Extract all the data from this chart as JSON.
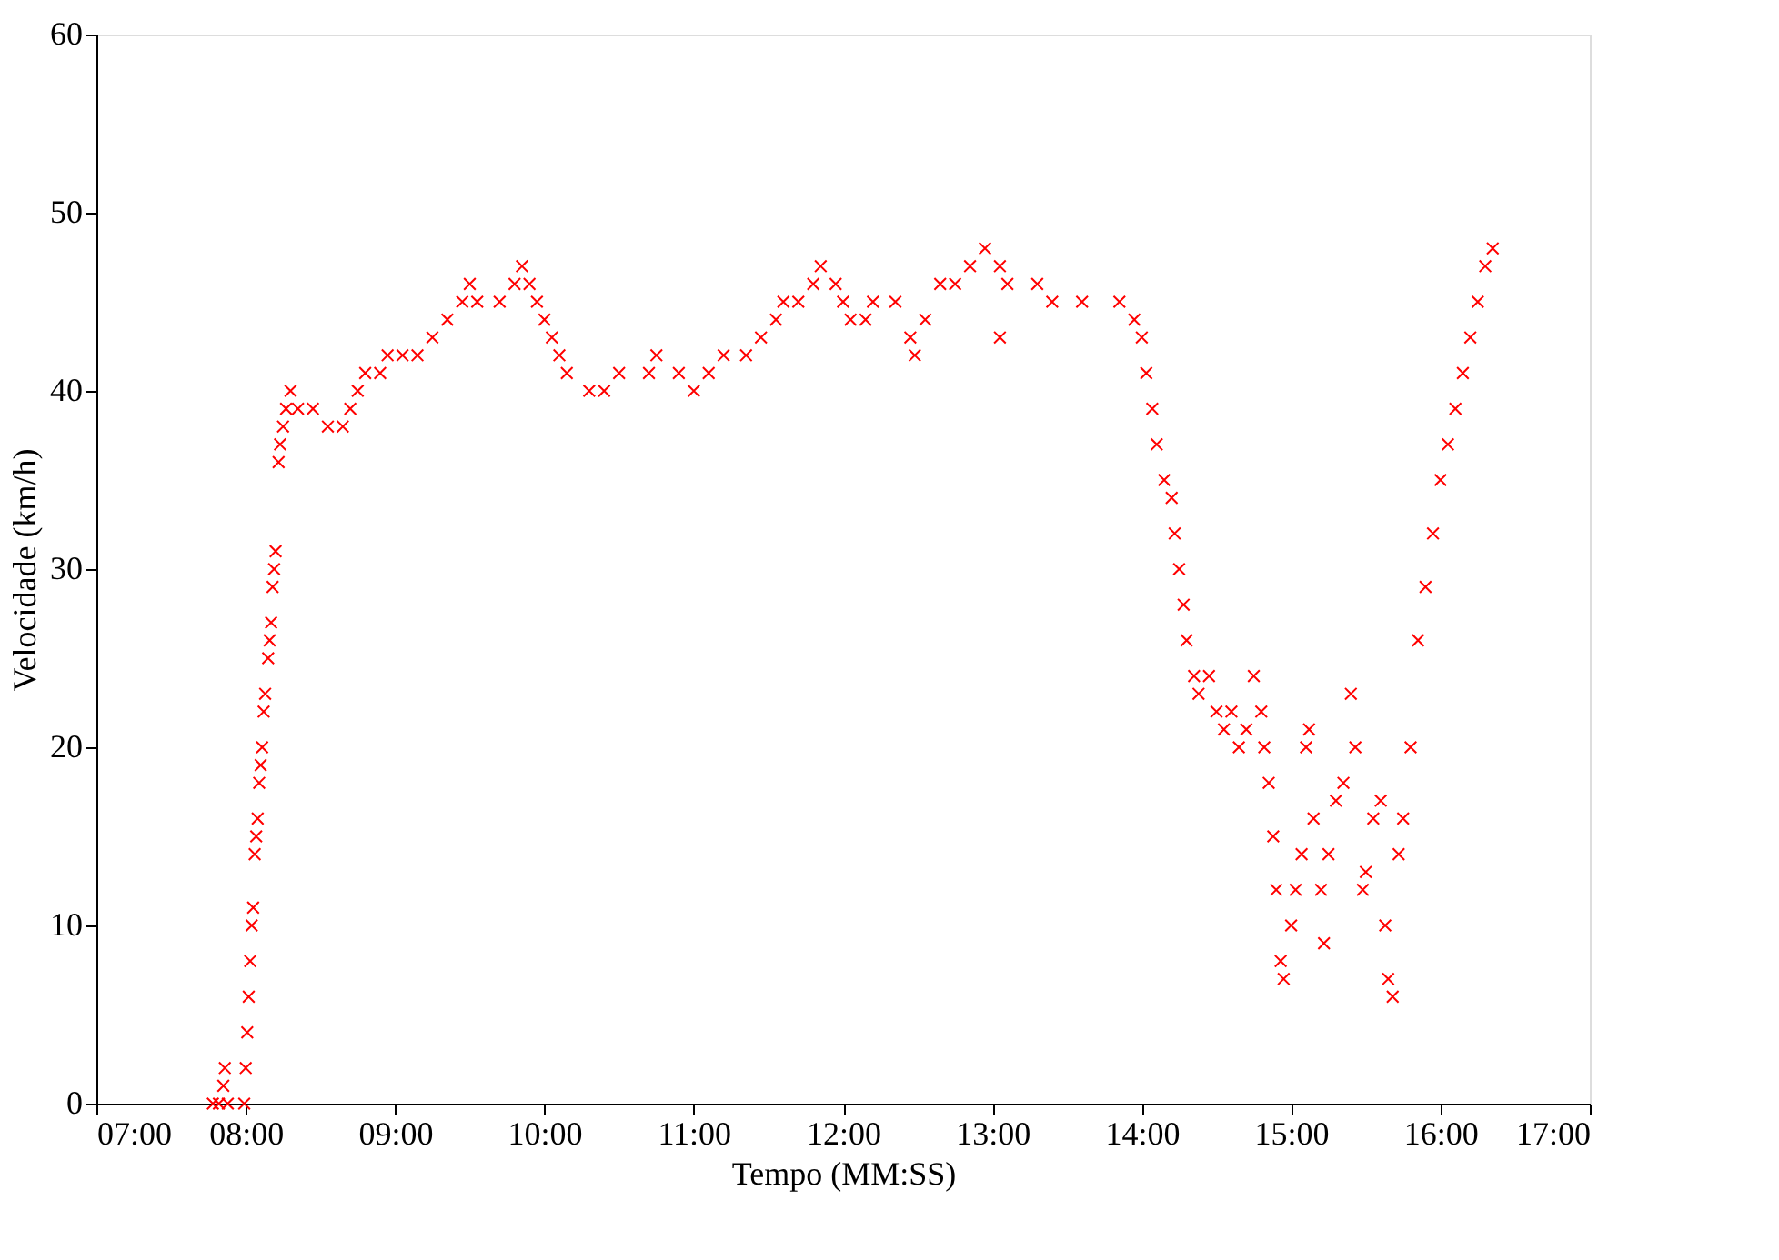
{
  "chart_data": {
    "type": "scatter",
    "xlabel": "Tempo (MM:SS)",
    "ylabel": "Velocidade (km/h)",
    "marker": "cross",
    "grid": false,
    "legend": false,
    "xlim": [
      7,
      17
    ],
    "ylim": [
      0,
      60
    ],
    "xticks": [
      {
        "value": 7,
        "label": "07:00"
      },
      {
        "value": 8,
        "label": "08:00"
      },
      {
        "value": 9,
        "label": "09:00"
      },
      {
        "value": 10,
        "label": "10:00"
      },
      {
        "value": 11,
        "label": "11:00"
      },
      {
        "value": 12,
        "label": "12:00"
      },
      {
        "value": 13,
        "label": "13:00"
      },
      {
        "value": 14,
        "label": "14:00"
      },
      {
        "value": 15,
        "label": "15:00"
      },
      {
        "value": 16,
        "label": "16:00"
      },
      {
        "value": 17,
        "label": "17:00"
      }
    ],
    "yticks": [
      0,
      10,
      20,
      30,
      40,
      50,
      60
    ],
    "series": [
      {
        "color": "#ff0000",
        "x": [
          7.78,
          7.82,
          7.85,
          7.86,
          7.88,
          7.99,
          8.0,
          8.01,
          8.02,
          8.03,
          8.04,
          8.05,
          8.06,
          8.07,
          8.08,
          8.09,
          8.1,
          8.11,
          8.12,
          8.13,
          8.15,
          8.16,
          8.17,
          8.18,
          8.19,
          8.2,
          8.22,
          8.23,
          8.25,
          8.27,
          8.3,
          8.35,
          8.45,
          8.55,
          8.65,
          8.7,
          8.75,
          8.8,
          8.9,
          8.95,
          9.05,
          9.15,
          9.25,
          9.35,
          9.45,
          9.5,
          9.55,
          9.7,
          9.8,
          9.85,
          9.9,
          9.95,
          10.0,
          10.05,
          10.1,
          10.15,
          10.3,
          10.4,
          10.5,
          10.7,
          10.75,
          10.9,
          11.0,
          11.1,
          11.2,
          11.35,
          11.45,
          11.55,
          11.6,
          11.7,
          11.8,
          11.85,
          11.95,
          12.0,
          12.05,
          12.15,
          12.2,
          12.35,
          12.45,
          12.48,
          12.55,
          12.65,
          12.75,
          12.85,
          12.95,
          13.05,
          13.05,
          13.1,
          13.3,
          13.4,
          13.6,
          13.85,
          13.95,
          14.0,
          14.03,
          14.07,
          14.1,
          14.15,
          14.2,
          14.22,
          14.25,
          14.28,
          14.3,
          14.35,
          14.38,
          14.45,
          14.5,
          14.55,
          14.6,
          14.65,
          14.7,
          14.75,
          14.8,
          14.82,
          14.85,
          14.88,
          14.9,
          14.93,
          14.95,
          15.0,
          15.03,
          15.07,
          15.1,
          15.12,
          15.15,
          15.2,
          15.22,
          15.25,
          15.3,
          15.35,
          15.4,
          15.43,
          15.48,
          15.5,
          15.55,
          15.6,
          15.63,
          15.65,
          15.68,
          15.72,
          15.75,
          15.8,
          15.85,
          15.9,
          15.95,
          16.0,
          16.05,
          16.1,
          16.15,
          16.2,
          16.25,
          16.3,
          16.35
        ],
        "values": [
          0,
          0,
          1,
          2,
          0,
          0,
          2,
          4,
          6,
          8,
          10,
          11,
          14,
          15,
          16,
          18,
          19,
          20,
          22,
          23,
          25,
          26,
          27,
          29,
          30,
          31,
          36,
          37,
          38,
          39,
          40,
          39,
          39,
          38,
          38,
          39,
          40,
          41,
          41,
          42,
          42,
          42,
          43,
          44,
          45,
          46,
          45,
          45,
          46,
          47,
          46,
          45,
          44,
          43,
          42,
          41,
          40,
          40,
          41,
          41,
          42,
          41,
          40,
          41,
          42,
          42,
          43,
          44,
          45,
          45,
          46,
          47,
          46,
          45,
          44,
          44,
          45,
          45,
          43,
          42,
          44,
          46,
          46,
          47,
          48,
          47,
          43,
          46,
          46,
          45,
          45,
          45,
          44,
          43,
          41,
          39,
          37,
          35,
          34,
          32,
          30,
          28,
          26,
          24,
          23,
          24,
          22,
          21,
          22,
          20,
          21,
          24,
          22,
          20,
          18,
          15,
          12,
          8,
          7,
          10,
          12,
          14,
          20,
          21,
          16,
          12,
          9,
          14,
          17,
          18,
          23,
          20,
          12,
          13,
          16,
          17,
          10,
          7,
          6,
          14,
          16,
          20,
          26,
          29,
          32,
          35,
          37,
          39,
          41,
          43,
          45,
          47,
          48
        ]
      }
    ]
  }
}
